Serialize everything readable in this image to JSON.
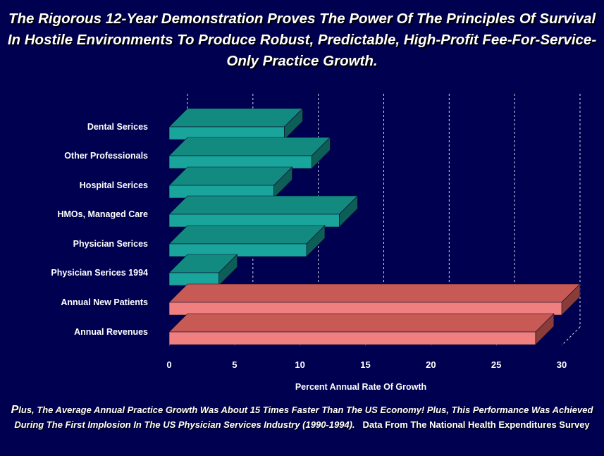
{
  "title": "The Rigorous 12-Year Demonstration Proves The Power Of The Principles Of Survival In Hostile Environments To Produce Robust, Predictable, High-Profit Fee-For-Service-Only Practice Growth.",
  "footnote": {
    "lead_letter": "P",
    "text": "lus, The Average Annual Practice Growth Was About 15 Times Faster Than The US Economy! Plus, This Performance Was Achieved During The First Implosion  In The US Physician Services Industry (1990-1994).",
    "source": "Data From The  National Health Expenditures Survey"
  },
  "colors": {
    "background": "#000050",
    "teal_front": "#19a59b",
    "teal_top": "#138a80",
    "teal_side": "#0c5e57",
    "salmon_front": "#f08080",
    "salmon_top": "#c85a55",
    "salmon_side": "#8a3c3a"
  },
  "chart_data": {
    "type": "bar",
    "orientation": "horizontal",
    "style": "3d",
    "xlabel": "Percent Annual Rate Of Growth",
    "ylabel": "",
    "xlim": [
      0,
      30
    ],
    "xticks": [
      0,
      5,
      10,
      15,
      20,
      25,
      30
    ],
    "grid": "vertical dashed",
    "categories": [
      "Dental Serices",
      "Other Professionals",
      "Hospital Serices",
      "HMOs, Managed Care",
      "Physician Serices",
      "Physician Serices 1994",
      "Annual New Patients",
      "Annual Revenues"
    ],
    "values": [
      8.8,
      10.9,
      8.0,
      13.0,
      10.5,
      3.8,
      30.0,
      28.0
    ],
    "bar_colors": [
      "teal",
      "teal",
      "teal",
      "teal",
      "teal",
      "teal",
      "salmon",
      "salmon"
    ]
  }
}
